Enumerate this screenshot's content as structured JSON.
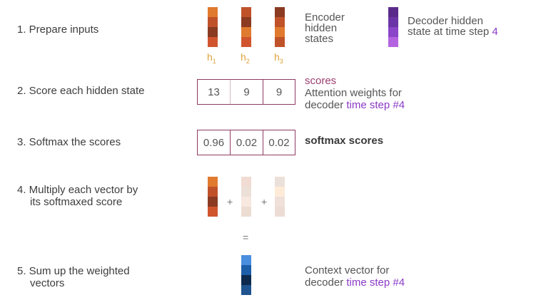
{
  "steps": [
    {
      "line1": "1.  Prepare inputs",
      "line2": ""
    },
    {
      "line1": "2.  Score each hidden state",
      "line2": ""
    },
    {
      "line1": "3.  Softmax the scores",
      "line2": ""
    },
    {
      "line1": "4. Multiply each vector by",
      "line2": "its softmaxed score"
    },
    {
      "line1": "5. Sum up the weighted",
      "line2": "vectors"
    }
  ],
  "encoder": {
    "label": [
      "Encoder",
      "hidden",
      "states"
    ],
    "h_labels": [
      {
        "base": "h",
        "sub": "1"
      },
      {
        "base": "h",
        "sub": "2"
      },
      {
        "base": "h",
        "sub": "3"
      }
    ],
    "colors": [
      [
        "#e07a2e",
        "#c0522a",
        "#8a3b22",
        "#d0552e"
      ],
      [
        "#c0522a",
        "#8a3b22",
        "#e07a2e",
        "#d0552e"
      ],
      [
        "#8a3b22",
        "#c0522a",
        "#e07a2e",
        "#c0522a"
      ]
    ]
  },
  "decoder": {
    "label_line1": "Decoder hidden",
    "label_line2_text": "state at time step ",
    "label_line2_num": "4",
    "colors": [
      "#5a2a8a",
      "#6b34a6",
      "#8a45c8",
      "#b463e0"
    ]
  },
  "scores": {
    "values": [
      "13",
      "9",
      "9"
    ],
    "title": "scores",
    "desc_line1": "Attention weights for",
    "desc_line2_text": "decoder ",
    "desc_line2_highlight": "time step #4"
  },
  "softmax": {
    "values": [
      "0.96",
      "0.02",
      "0.02"
    ],
    "label": "softmax scores"
  },
  "weighted": {
    "colors": [
      [
        "#e07a2e",
        "#c0522a",
        "#8a3b22",
        "#d0552e"
      ],
      [
        "#f0dcd2",
        "#ece0d8",
        "#f8e8e0",
        "#ecdcd2"
      ],
      [
        "#ece0da",
        "#fdebd8",
        "#f0e0da",
        "#ecdcd4"
      ]
    ],
    "plus": "+",
    "equals": "="
  },
  "context": {
    "colors": [
      "#4a8ee0",
      "#1d5ea8",
      "#0d2a4e",
      "#1f5490"
    ],
    "desc_line1": "Context vector for",
    "desc_line2_text": "decoder ",
    "desc_line2_highlight": "time step #4"
  }
}
